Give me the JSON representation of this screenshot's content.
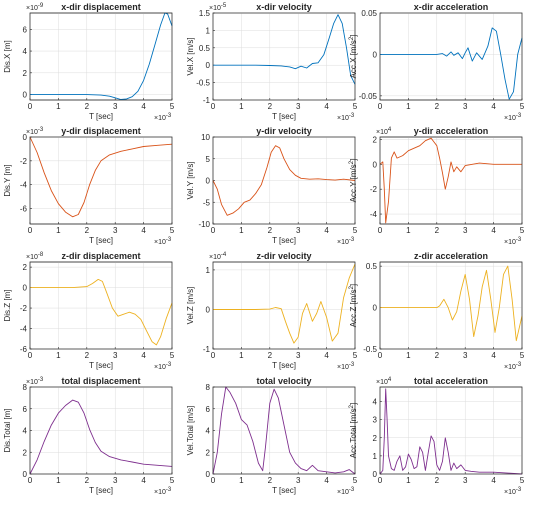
{
  "chart_data": [
    {
      "type": "line",
      "title": "x-dir displacement",
      "xlabel": "T [sec]",
      "ylabel": "Dis.X [m]",
      "x_multiplier": "×10^-3",
      "y_multiplier": "×10^-9",
      "xlim": [
        0,
        5
      ],
      "ylim": [
        -0.5,
        7.5
      ],
      "xticks": [
        0,
        1,
        2,
        3,
        4,
        5
      ],
      "yticks": [
        0,
        2,
        4,
        6
      ],
      "color": "#0072bd",
      "x": [
        0,
        0.5,
        1,
        1.5,
        2,
        2.5,
        2.8,
        3,
        3.2,
        3.4,
        3.6,
        3.8,
        4,
        4.2,
        4.4,
        4.6,
        4.75,
        4.85,
        5
      ],
      "y": [
        0,
        0,
        0,
        0,
        0,
        -0.05,
        -0.15,
        -0.3,
        -0.45,
        -0.4,
        -0.2,
        0.3,
        1.3,
        2.8,
        4.6,
        6.4,
        7.5,
        7.4,
        6.3
      ]
    },
    {
      "type": "line",
      "title": "x-dir velocity",
      "xlabel": "T [sec]",
      "ylabel": "Vel.X [m/s]",
      "x_multiplier": "×10^-3",
      "y_multiplier": "×10^-5",
      "xlim": [
        0,
        5
      ],
      "ylim": [
        -1,
        1.5
      ],
      "xticks": [
        0,
        1,
        2,
        3,
        4,
        5
      ],
      "yticks": [
        -1,
        -0.5,
        0,
        0.5,
        1,
        1.5
      ],
      "color": "#0072bd",
      "x": [
        0,
        0.5,
        1,
        1.5,
        2,
        2.4,
        2.7,
        2.9,
        3.1,
        3.3,
        3.5,
        3.7,
        3.9,
        4.1,
        4.25,
        4.4,
        4.55,
        4.7,
        4.85,
        5
      ],
      "y": [
        0,
        0,
        0,
        0,
        -0.01,
        -0.02,
        -0.05,
        -0.1,
        -0.03,
        -0.08,
        0.05,
        0.07,
        0.3,
        0.8,
        1.2,
        1.45,
        1.2,
        0.5,
        -0.3,
        -0.55
      ]
    },
    {
      "type": "line",
      "title": "x-dir acceleration",
      "xlabel": "",
      "ylabel": "Acc.X [m/s²]",
      "x_multiplier": "×10^-3",
      "y_multiplier": "",
      "xlim": [
        0,
        5
      ],
      "ylim": [
        -0.055,
        0.05
      ],
      "xticks": [
        0,
        1,
        2,
        3,
        4,
        5
      ],
      "yticks": [
        -0.05,
        0,
        0.05
      ],
      "ytick_labels": [
        "-0.05",
        "0",
        "0.05"
      ],
      "color": "#0072bd",
      "x": [
        0,
        1,
        2,
        2.2,
        2.35,
        2.5,
        2.6,
        2.75,
        2.9,
        3,
        3.1,
        3.25,
        3.4,
        3.6,
        3.8,
        3.95,
        4.1,
        4.25,
        4.4,
        4.55,
        4.7,
        4.85,
        5
      ],
      "y": [
        0,
        0,
        0,
        0.001,
        -0.002,
        0.003,
        -0.001,
        0.002,
        -0.005,
        0.002,
        0.008,
        -0.008,
        0.002,
        -0.006,
        0.01,
        0.032,
        0.028,
        0.0,
        -0.03,
        -0.054,
        -0.045,
        0.0,
        0.02
      ]
    },
    {
      "type": "line",
      "title": "y-dir displacement",
      "xlabel": "T [sec]",
      "ylabel": "Dis.Y [m]",
      "x_multiplier": "×10^-3",
      "y_multiplier": "×10^-3",
      "xlim": [
        0,
        5
      ],
      "ylim": [
        -7.3,
        0
      ],
      "xticks": [
        0,
        1,
        2,
        3,
        4,
        5
      ],
      "yticks": [
        -6,
        -4,
        -2,
        0
      ],
      "color": "#d95319",
      "x": [
        0,
        0.25,
        0.5,
        0.75,
        1,
        1.25,
        1.5,
        1.7,
        1.9,
        2.1,
        2.3,
        2.5,
        2.8,
        3.2,
        3.6,
        4,
        4.5,
        5
      ],
      "y": [
        0,
        -1.3,
        -3,
        -4.5,
        -5.6,
        -6.3,
        -6.7,
        -6.5,
        -5.5,
        -4,
        -2.8,
        -2,
        -1.5,
        -1.2,
        -1,
        -0.8,
        -0.7,
        -0.6
      ]
    },
    {
      "type": "line",
      "title": "y-dir velocity",
      "xlabel": "T [sec]",
      "ylabel": "Vel.Y [m/s]",
      "x_multiplier": "×10^-3",
      "y_multiplier": "",
      "xlim": [
        0,
        5
      ],
      "ylim": [
        -10,
        10
      ],
      "xticks": [
        0,
        1,
        2,
        3,
        4,
        5
      ],
      "yticks": [
        -10,
        -5,
        0,
        5,
        10
      ],
      "color": "#d95319",
      "x": [
        0,
        0.15,
        0.3,
        0.5,
        0.7,
        0.9,
        1.1,
        1.3,
        1.5,
        1.7,
        1.9,
        2.05,
        2.2,
        2.35,
        2.5,
        2.7,
        2.9,
        3.1,
        3.4,
        3.7,
        4,
        4.3,
        4.6,
        5
      ],
      "y": [
        0,
        -2,
        -5.5,
        -8,
        -7.5,
        -6.5,
        -5,
        -4.5,
        -3,
        -1,
        3,
        6.5,
        8,
        7.5,
        5,
        2.5,
        1.2,
        0.5,
        0.3,
        0.4,
        0.2,
        0.1,
        0.3,
        0
      ]
    },
    {
      "type": "line",
      "title": "y-dir acceleration",
      "xlabel": "",
      "ylabel": "Acc.Y [m/s²]",
      "x_multiplier": "×10^-3",
      "y_multiplier": "×10^4",
      "xlim": [
        0,
        5
      ],
      "ylim": [
        -4.8,
        2.2
      ],
      "xticks": [
        0,
        1,
        2,
        3,
        4,
        5
      ],
      "yticks": [
        -4,
        -2,
        0,
        2
      ],
      "color": "#d95319",
      "x": [
        0,
        0.1,
        0.15,
        0.2,
        0.3,
        0.4,
        0.5,
        0.6,
        0.8,
        1,
        1.2,
        1.4,
        1.6,
        1.8,
        1.9,
        2,
        2.1,
        2.2,
        2.3,
        2.4,
        2.5,
        2.6,
        2.7,
        2.85,
        3,
        3.5,
        4,
        5
      ],
      "y": [
        0,
        0.2,
        -2,
        -4.7,
        -3,
        0.5,
        1,
        0.5,
        0.7,
        1.1,
        1.3,
        1.5,
        1.9,
        2.1,
        1.8,
        1.5,
        0.5,
        -0.7,
        -2,
        -1,
        0.2,
        -0.6,
        -0.2,
        -0.6,
        -0.1,
        0.1,
        0,
        0
      ]
    },
    {
      "type": "line",
      "title": "z-dir displacement",
      "xlabel": "T [sec]",
      "ylabel": "Dis.Z [m]",
      "x_multiplier": "×10^-3",
      "y_multiplier": "×10^-8",
      "xlim": [
        0,
        5
      ],
      "ylim": [
        -6,
        2.5
      ],
      "xticks": [
        0,
        1,
        2,
        3,
        4,
        5
      ],
      "yticks": [
        -6,
        -4,
        -2,
        0,
        2
      ],
      "color": "#edb120",
      "x": [
        0,
        0.5,
        1,
        1.5,
        2,
        2.2,
        2.4,
        2.55,
        2.7,
        2.9,
        3.1,
        3.3,
        3.5,
        3.7,
        3.9,
        4.1,
        4.3,
        4.45,
        4.6,
        4.8,
        5
      ],
      "y": [
        0,
        0,
        0,
        0,
        0.1,
        0.4,
        0.8,
        0.6,
        -0.5,
        -2,
        -2.8,
        -2.6,
        -2.4,
        -2.6,
        -3.1,
        -4.2,
        -5.3,
        -5.6,
        -4.8,
        -3,
        -1.5
      ]
    },
    {
      "type": "line",
      "title": "z-dir velocity",
      "xlabel": "T [sec]",
      "ylabel": "Vel.Z [m/s]",
      "x_multiplier": "×10^-3",
      "y_multiplier": "×10^-4",
      "xlim": [
        0,
        5
      ],
      "ylim": [
        -1,
        1.2
      ],
      "xticks": [
        0,
        1,
        2,
        3,
        4,
        5
      ],
      "yticks": [
        -1,
        0,
        1
      ],
      "color": "#edb120",
      "x": [
        0,
        0.5,
        1,
        1.5,
        2,
        2.2,
        2.4,
        2.55,
        2.7,
        2.85,
        3,
        3.15,
        3.3,
        3.5,
        3.65,
        3.8,
        4,
        4.2,
        4.4,
        4.6,
        4.8,
        5
      ],
      "y": [
        0,
        0,
        0,
        0,
        0.01,
        0.05,
        0.02,
        -0.3,
        -0.6,
        -0.85,
        -0.7,
        -0.1,
        0.15,
        -0.3,
        -0.1,
        0.2,
        -0.2,
        -0.8,
        -0.6,
        0.3,
        0.8,
        1.15
      ]
    },
    {
      "type": "line",
      "title": "z-dir acceleration",
      "xlabel": "",
      "ylabel": "Acc.Z [m/s²]",
      "x_multiplier": "×10^-3",
      "y_multiplier": "",
      "xlim": [
        0,
        5
      ],
      "ylim": [
        -0.5,
        0.55
      ],
      "xticks": [
        0,
        1,
        2,
        3,
        4,
        5
      ],
      "yticks": [
        -0.5,
        0,
        0.5
      ],
      "ytick_labels": [
        "-0.5",
        "0",
        "0.5"
      ],
      "color": "#edb120",
      "x": [
        0,
        1,
        2,
        2.1,
        2.25,
        2.4,
        2.55,
        2.7,
        2.85,
        3,
        3.15,
        3.3,
        3.45,
        3.6,
        3.75,
        3.9,
        4.05,
        4.2,
        4.35,
        4.5,
        4.65,
        4.8,
        5
      ],
      "y": [
        0,
        0,
        0,
        0.02,
        0.1,
        0,
        -0.15,
        -0.05,
        0.2,
        0.4,
        0.1,
        -0.35,
        -0.1,
        0.25,
        0.45,
        0.1,
        -0.3,
        0.0,
        0.4,
        0.5,
        0.1,
        -0.4,
        -0.1
      ]
    },
    {
      "type": "line",
      "title": "total displacement",
      "xlabel": "T [sec]",
      "ylabel": "Dis.Total [m]",
      "x_multiplier": "×10^-3",
      "y_multiplier": "×10^-3",
      "xlim": [
        0,
        5
      ],
      "ylim": [
        0,
        8
      ],
      "xticks": [
        0,
        1,
        2,
        3,
        4,
        5
      ],
      "yticks": [
        0,
        2,
        4,
        6,
        8
      ],
      "color": "#7e2f8e",
      "x": [
        0,
        0.25,
        0.5,
        0.75,
        1,
        1.25,
        1.5,
        1.7,
        1.9,
        2.1,
        2.3,
        2.5,
        2.8,
        3.2,
        3.6,
        4,
        4.5,
        5
      ],
      "y": [
        0,
        1.3,
        3,
        4.5,
        5.6,
        6.3,
        6.8,
        6.6,
        5.6,
        4.1,
        2.9,
        2.1,
        1.6,
        1.3,
        1.1,
        0.9,
        0.8,
        0.7
      ]
    },
    {
      "type": "line",
      "title": "total velocity",
      "xlabel": "T [sec]",
      "ylabel": "Vel.Total [m/s]",
      "x_multiplier": "×10^-3",
      "y_multiplier": "",
      "xlim": [
        0,
        5
      ],
      "ylim": [
        0,
        8
      ],
      "xticks": [
        0,
        1,
        2,
        3,
        4,
        5
      ],
      "yticks": [
        0,
        2,
        4,
        6,
        8
      ],
      "color": "#7e2f8e",
      "x": [
        0,
        0.15,
        0.3,
        0.45,
        0.6,
        0.8,
        1,
        1.2,
        1.4,
        1.6,
        1.75,
        1.85,
        2,
        2.15,
        2.3,
        2.5,
        2.7,
        2.9,
        3.1,
        3.3,
        3.5,
        3.7,
        4,
        4.3,
        4.6,
        4.8,
        5
      ],
      "y": [
        0,
        2,
        5.5,
        8,
        7.5,
        6.5,
        5,
        4.5,
        3,
        1,
        0.3,
        2.5,
        6.5,
        7.8,
        7,
        4.5,
        2,
        1,
        0.5,
        0.3,
        0.8,
        0.3,
        0.2,
        0.1,
        0.2,
        0.4,
        0
      ]
    },
    {
      "type": "line",
      "title": "total acceleration",
      "xlabel": "",
      "ylabel": "Acc.Total [m/s²]",
      "x_multiplier": "×10^-3",
      "y_multiplier": "×10^4",
      "xlim": [
        0,
        5
      ],
      "ylim": [
        0,
        4.8
      ],
      "xticks": [
        0,
        1,
        2,
        3,
        4,
        5
      ],
      "yticks": [
        0,
        1,
        2,
        3,
        4
      ],
      "color": "#7e2f8e",
      "x": [
        0,
        0.1,
        0.15,
        0.2,
        0.25,
        0.3,
        0.4,
        0.5,
        0.6,
        0.7,
        0.8,
        0.9,
        1,
        1.1,
        1.2,
        1.3,
        1.4,
        1.5,
        1.6,
        1.7,
        1.8,
        1.9,
        2,
        2.1,
        2.2,
        2.3,
        2.4,
        2.5,
        2.6,
        2.7,
        2.85,
        3,
        3.2,
        3.5,
        4,
        4.5,
        5
      ],
      "y": [
        0,
        0.2,
        2,
        4.7,
        3,
        1,
        0.3,
        0.2,
        0.7,
        1,
        0.2,
        0.4,
        1.1,
        0.8,
        0.3,
        0.4,
        1.5,
        1.2,
        0.2,
        1.2,
        2.1,
        1.8,
        0.5,
        0.2,
        0.7,
        2,
        1.2,
        0.2,
        0.6,
        0.3,
        0.5,
        0.2,
        0.15,
        0.1,
        0.1,
        0.05,
        0
      ]
    }
  ]
}
